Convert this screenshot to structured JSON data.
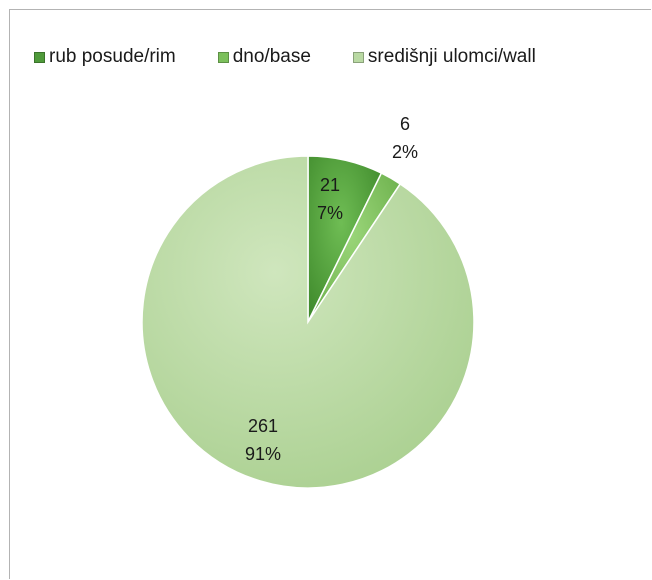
{
  "chart_data": {
    "type": "pie",
    "title": "",
    "categories": [
      "rub posude/rim",
      "dno/base",
      "središnji ulomci/wall"
    ],
    "values": [
      21,
      6,
      261
    ],
    "percent_labels": [
      "7%",
      "2%",
      "91%"
    ],
    "value_labels": [
      "21",
      "6",
      "261"
    ],
    "colors": [
      "#4f9a3a",
      "#7cc05c",
      "#b9d9a3"
    ],
    "start_angle_deg": 0,
    "direction": "clockwise",
    "legend_position": "top"
  }
}
